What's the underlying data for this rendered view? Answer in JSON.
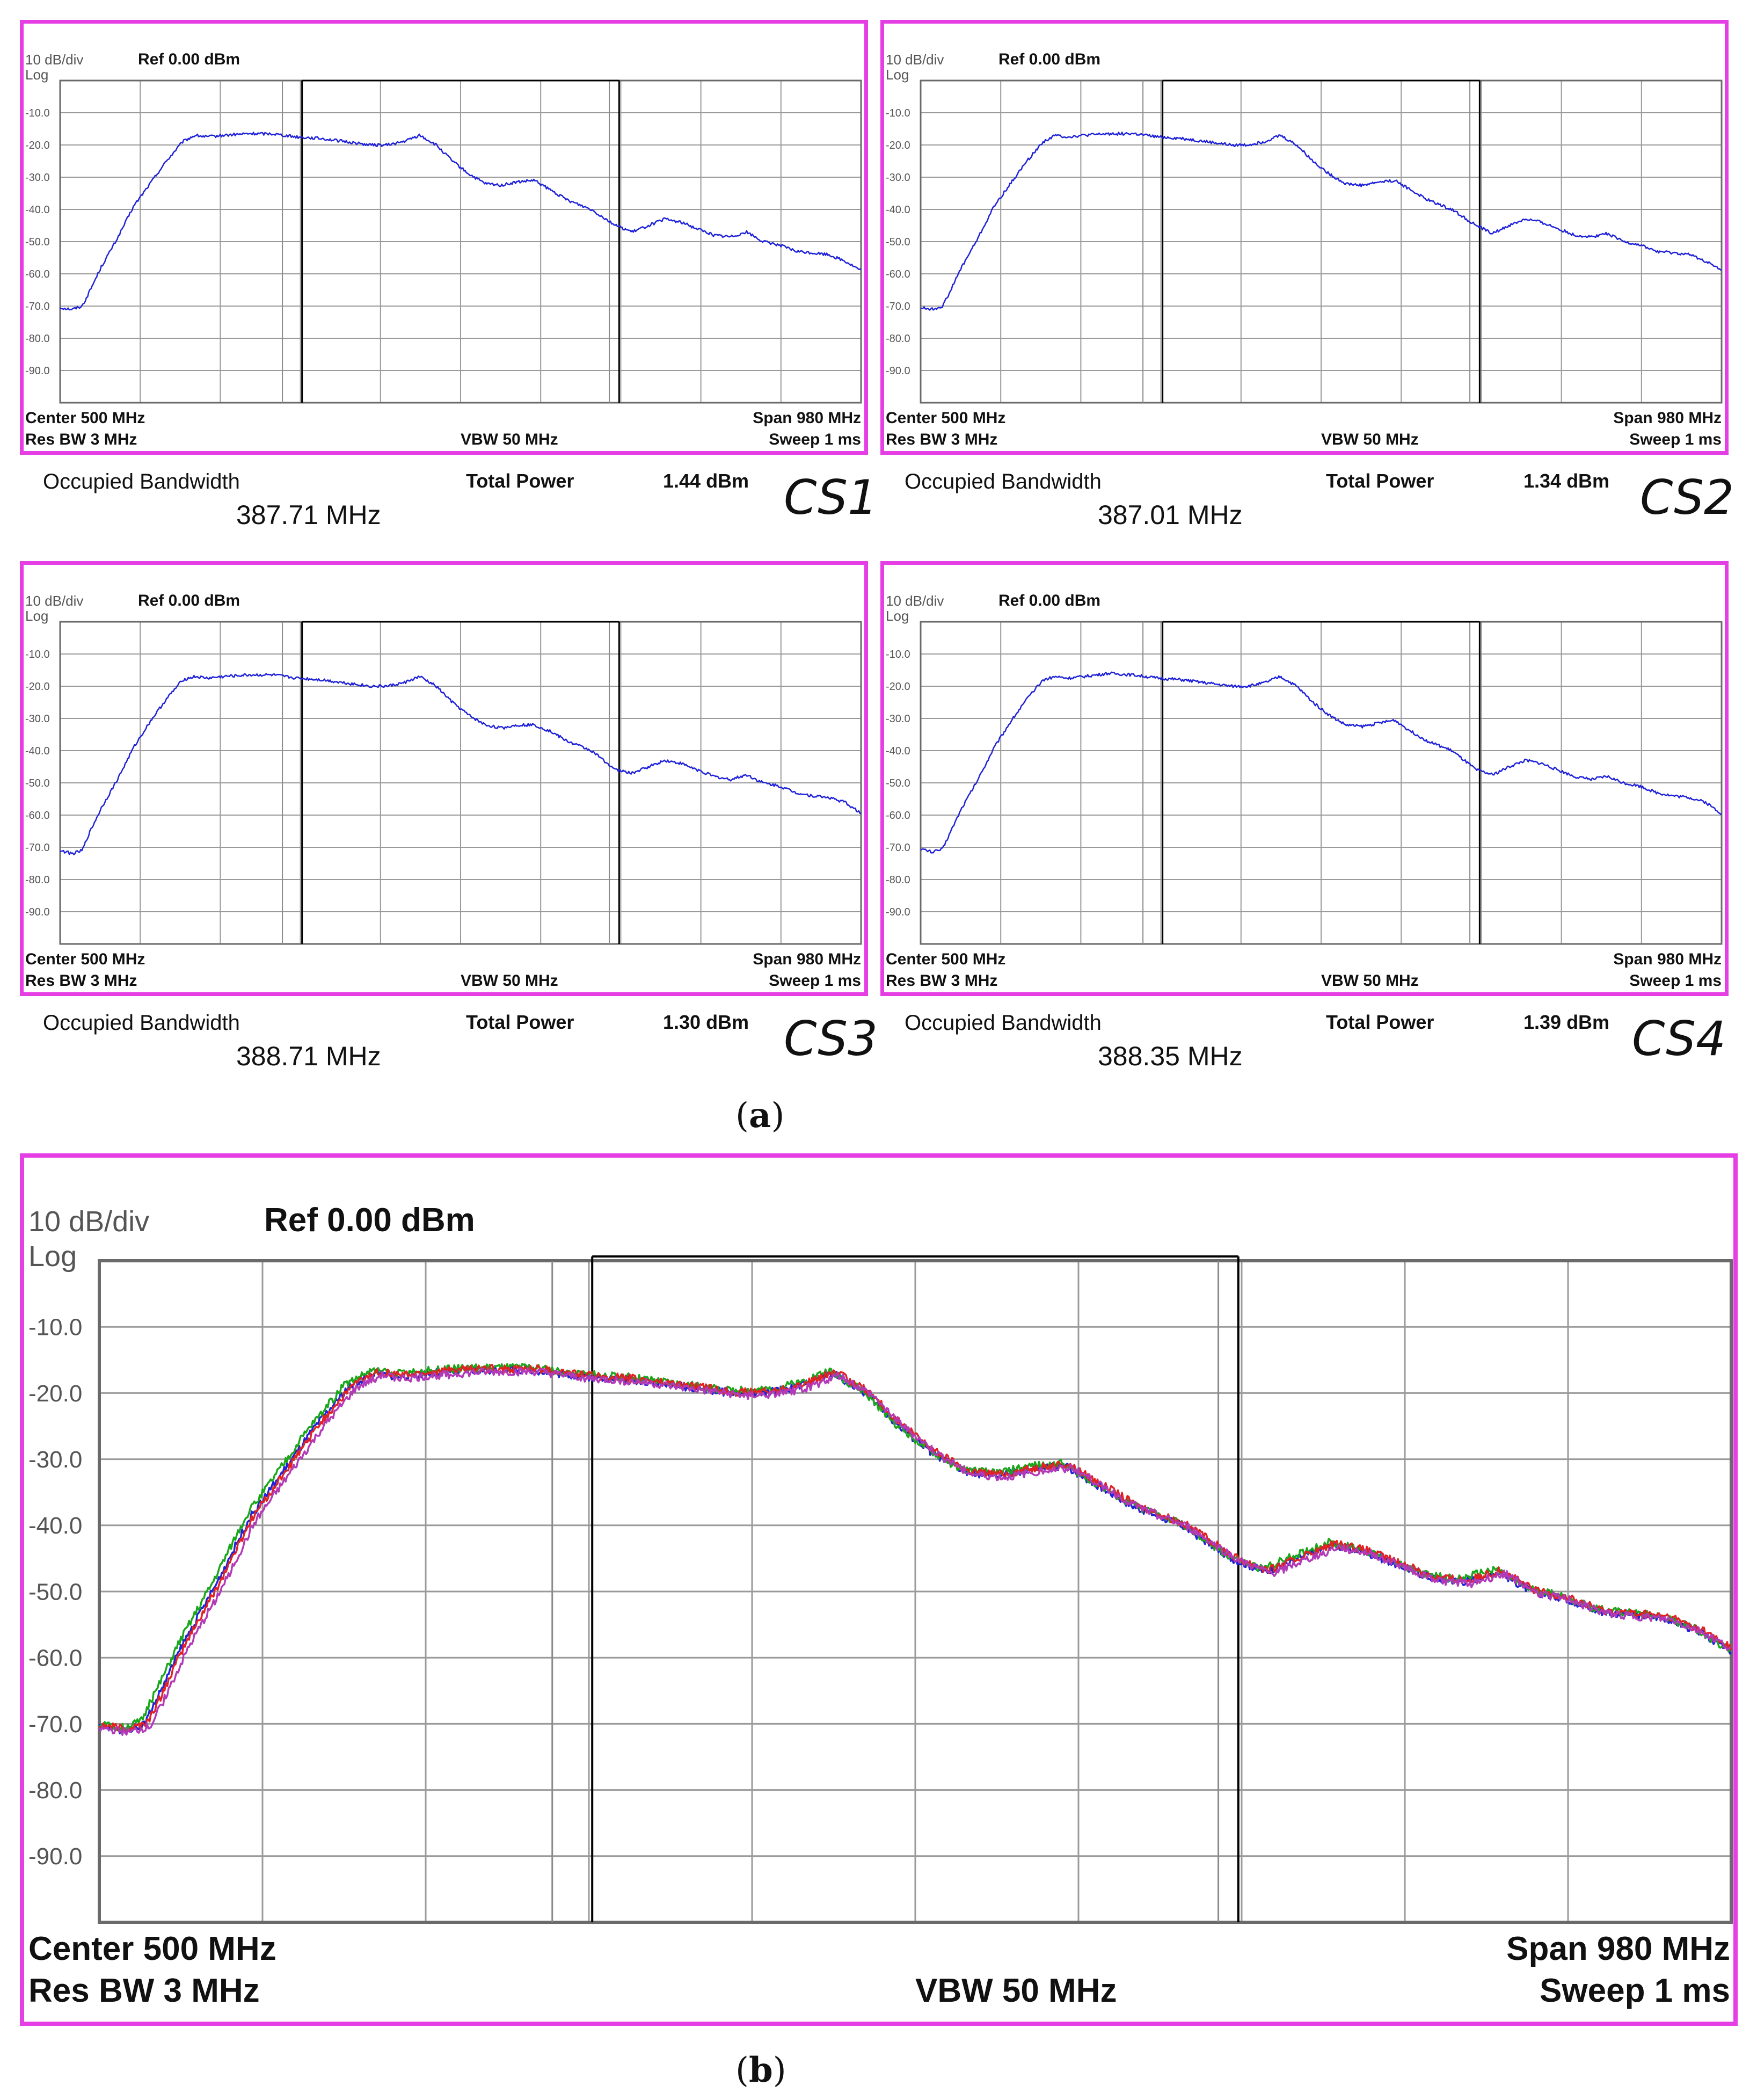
{
  "figure": {
    "sub_a": "a",
    "sub_b": "b",
    "colors": {
      "frame": "#e53ee5",
      "grid": "#9a9a9a",
      "trace_single": "#1f22d8",
      "text": "#111111"
    }
  },
  "chart_data": [
    {
      "id": "cs1",
      "type": "line",
      "tag": "CS1",
      "scale_label": "10 dB/div",
      "log_label": "Log",
      "ref_label": "Ref 0.00 dBm",
      "center_label": "Center  500 MHz",
      "span_label": "Span 980 MHz",
      "resbw_label": "Res BW  3 MHz",
      "vbw_label": "VBW  50 MHz",
      "sweep_label": "Sweep  1 ms",
      "ytick_labels": [
        "-10.0",
        "-20.0",
        "-30.0",
        "-40.0",
        "-50.0",
        "-60.0",
        "-70.0",
        "-80.0",
        "-90.0"
      ],
      "ylim": [
        -100,
        0
      ],
      "xlim": [
        10,
        990
      ],
      "xunit": "MHz",
      "yunit": "dBm",
      "occupied_bw_label": "Occupied Bandwidth",
      "occupied_bw_value": "387.71 MHz",
      "total_power_label": "Total Power",
      "total_power_value": "1.44 dBm",
      "marker_lines_mhz": [
        306,
        694
      ],
      "series": [
        {
          "name": "CS1",
          "color": "#1f22d8",
          "x": [
            10,
            25,
            37,
            45,
            60,
            80,
            100,
            120,
            140,
            160,
            175,
            190,
            210,
            240,
            270,
            300,
            330,
            360,
            390,
            410,
            430,
            450,
            470,
            490,
            510,
            530,
            550,
            570,
            590,
            610,
            630,
            660,
            690,
            710,
            730,
            750,
            770,
            790,
            810,
            830,
            850,
            870,
            890,
            910,
            930,
            950,
            970,
            990
          ],
          "y": [
            -70.5,
            -71,
            -70,
            -66,
            -58,
            -49,
            -39,
            -32,
            -25,
            -19,
            -17,
            -17.5,
            -17,
            -16.5,
            -16.5,
            -17.5,
            -18,
            -19,
            -20,
            -20,
            -19,
            -17,
            -20,
            -25,
            -29,
            -32,
            -32.5,
            -31.5,
            -31,
            -34,
            -37,
            -40,
            -45,
            -47,
            -45,
            -43,
            -44,
            -46,
            -48,
            -48.5,
            -47,
            -50,
            -51,
            -53,
            -53.5,
            -54,
            -56,
            -59
          ]
        }
      ]
    },
    {
      "id": "cs2",
      "type": "line",
      "tag": "CS2",
      "scale_label": "10 dB/div",
      "log_label": "Log",
      "ref_label": "Ref 0.00 dBm",
      "center_label": "Center  500 MHz",
      "span_label": "Span 980 MHz",
      "resbw_label": "Res BW  3 MHz",
      "vbw_label": "VBW  50 MHz",
      "sweep_label": "Sweep  1 ms",
      "ytick_labels": [
        "-10.0",
        "-20.0",
        "-30.0",
        "-40.0",
        "-50.0",
        "-60.0",
        "-70.0",
        "-80.0",
        "-90.0"
      ],
      "ylim": [
        -100,
        0
      ],
      "xlim": [
        10,
        990
      ],
      "xunit": "MHz",
      "yunit": "dBm",
      "occupied_bw_label": "Occupied Bandwidth",
      "occupied_bw_value": "387.01 MHz",
      "total_power_label": "Total Power",
      "total_power_value": "1.34 dBm",
      "marker_lines_mhz": [
        306,
        694
      ],
      "series": [
        {
          "name": "CS2",
          "color": "#1f22d8",
          "x": [
            10,
            25,
            37,
            45,
            60,
            80,
            100,
            120,
            140,
            160,
            175,
            190,
            210,
            240,
            270,
            300,
            330,
            360,
            390,
            410,
            430,
            450,
            470,
            490,
            510,
            530,
            550,
            570,
            590,
            610,
            630,
            660,
            690,
            710,
            730,
            750,
            770,
            790,
            810,
            830,
            850,
            870,
            890,
            910,
            930,
            950,
            970,
            990
          ],
          "y": [
            -70.5,
            -71,
            -70,
            -66,
            -58,
            -49,
            -39,
            -32,
            -25,
            -19,
            -17,
            -17.5,
            -17,
            -16.5,
            -16.5,
            -17.5,
            -18,
            -19,
            -20,
            -20,
            -19,
            -17,
            -20,
            -25,
            -29,
            -32,
            -32.5,
            -31.5,
            -31,
            -34,
            -37,
            -40,
            -45,
            -47.5,
            -45,
            -43,
            -44,
            -46,
            -48,
            -48.5,
            -47.5,
            -50,
            -51,
            -53,
            -53.5,
            -54,
            -56,
            -59
          ]
        }
      ]
    },
    {
      "id": "cs3",
      "type": "line",
      "tag": "CS3",
      "scale_label": "10 dB/div",
      "log_label": "Log",
      "ref_label": "Ref 0.00 dBm",
      "center_label": "Center  500 MHz",
      "span_label": "Span 980 MHz",
      "resbw_label": "Res BW  3 MHz",
      "vbw_label": "VBW  50 MHz",
      "sweep_label": "Sweep  1 ms",
      "ytick_labels": [
        "-10.0",
        "-20.0",
        "-30.0",
        "-40.0",
        "-50.0",
        "-60.0",
        "-70.0",
        "-80.0",
        "-90.0"
      ],
      "ylim": [
        -100,
        0
      ],
      "xlim": [
        10,
        990
      ],
      "xunit": "MHz",
      "yunit": "dBm",
      "occupied_bw_label": "Occupied Bandwidth",
      "occupied_bw_value": "388.71 MHz",
      "total_power_label": "Total Power",
      "total_power_value": "1.30 dBm",
      "marker_lines_mhz": [
        306,
        694
      ],
      "series": [
        {
          "name": "CS3",
          "color": "#1f22d8",
          "x": [
            10,
            25,
            37,
            45,
            60,
            80,
            100,
            120,
            140,
            160,
            175,
            190,
            210,
            240,
            270,
            300,
            330,
            360,
            390,
            410,
            430,
            450,
            470,
            490,
            510,
            530,
            550,
            570,
            590,
            610,
            630,
            660,
            690,
            710,
            730,
            750,
            770,
            790,
            810,
            830,
            850,
            870,
            890,
            910,
            930,
            950,
            970,
            990
          ],
          "y": [
            -71,
            -72,
            -71,
            -66,
            -58,
            -49,
            -39,
            -31,
            -24,
            -18,
            -17,
            -17.5,
            -17,
            -16.5,
            -16.5,
            -17.5,
            -18,
            -19,
            -20,
            -20,
            -19,
            -17,
            -20,
            -25,
            -29,
            -32,
            -33,
            -32,
            -32,
            -34,
            -37,
            -40,
            -46,
            -47,
            -45,
            -43,
            -44,
            -46,
            -48,
            -49,
            -47.5,
            -50,
            -51,
            -53,
            -54,
            -54.5,
            -56,
            -59.5
          ]
        }
      ]
    },
    {
      "id": "cs4",
      "type": "line",
      "tag": "CS4",
      "scale_label": "10 dB/div",
      "log_label": "Log",
      "ref_label": "Ref 0.00 dBm",
      "center_label": "Center  500 MHz",
      "span_label": "Span 980 MHz",
      "resbw_label": "Res BW  3 MHz",
      "vbw_label": "VBW  50 MHz",
      "sweep_label": "Sweep  1 ms",
      "ytick_labels": [
        "-10.0",
        "-20.0",
        "-30.0",
        "-40.0",
        "-50.0",
        "-60.0",
        "-70.0",
        "-80.0",
        "-90.0"
      ],
      "ylim": [
        -100,
        0
      ],
      "xlim": [
        10,
        990
      ],
      "xunit": "MHz",
      "yunit": "dBm",
      "occupied_bw_label": "Occupied Bandwidth",
      "occupied_bw_value": "388.35 MHz",
      "total_power_label": "Total Power",
      "total_power_value": "1.39 dBm",
      "marker_lines_mhz": [
        306,
        694
      ],
      "series": [
        {
          "name": "CS4",
          "color": "#1f22d8",
          "x": [
            10,
            25,
            37,
            45,
            60,
            80,
            100,
            120,
            140,
            160,
            175,
            190,
            210,
            240,
            270,
            300,
            330,
            360,
            390,
            410,
            430,
            450,
            470,
            490,
            510,
            530,
            550,
            570,
            590,
            610,
            630,
            660,
            690,
            710,
            730,
            750,
            770,
            790,
            810,
            830,
            850,
            870,
            890,
            910,
            930,
            950,
            970,
            990
          ],
          "y": [
            -70.5,
            -71.5,
            -70.5,
            -66,
            -58,
            -49,
            -39,
            -31,
            -24,
            -18,
            -17,
            -17.5,
            -17,
            -16,
            -16.5,
            -17.5,
            -18,
            -19,
            -20,
            -20,
            -19,
            -17,
            -20,
            -25,
            -29,
            -32,
            -32.5,
            -31.5,
            -30.5,
            -34,
            -37,
            -40,
            -46,
            -47.5,
            -45,
            -43,
            -44,
            -46,
            -48,
            -49,
            -48,
            -50,
            -51,
            -53,
            -54,
            -54.5,
            -56,
            -59.5
          ]
        }
      ]
    },
    {
      "id": "combined",
      "type": "line",
      "scale_label": "10 dB/div",
      "log_label": "Log",
      "ref_label": "Ref 0.00 dBm",
      "center_label": "Center  500 MHz",
      "span_label": "Span 980 MHz",
      "resbw_label": "Res BW  3 MHz",
      "vbw_label": "VBW  50 MHz",
      "sweep_label": "Sweep  1 ms",
      "ytick_labels": [
        "-10.0",
        "-20.0",
        "-30.0",
        "-40.0",
        "-50.0",
        "-60.0",
        "-70.0",
        "-80.0",
        "-90.0"
      ],
      "ylim": [
        -100,
        0
      ],
      "xlim": [
        10,
        990
      ],
      "xunit": "MHz",
      "yunit": "dBm",
      "marker_lines_mhz": [
        306,
        694
      ],
      "series": [
        {
          "name": "CS1",
          "color": "#1f22d8",
          "offset_mhz": 0,
          "yshift": 0
        },
        {
          "name": "CS2",
          "color": "#1aa71a",
          "offset_mhz": -2,
          "yshift": 0.4
        },
        {
          "name": "CS3",
          "color": "#e22222",
          "offset_mhz": 2,
          "yshift": 0.2
        },
        {
          "name": "CS4",
          "color": "#b23ab8",
          "offset_mhz": 4,
          "yshift": -0.3
        }
      ],
      "x": [
        10,
        25,
        37,
        45,
        60,
        80,
        100,
        120,
        140,
        160,
        175,
        190,
        210,
        240,
        270,
        300,
        330,
        360,
        390,
        410,
        430,
        450,
        470,
        490,
        510,
        530,
        550,
        570,
        590,
        610,
        630,
        660,
        690,
        710,
        730,
        750,
        770,
        790,
        810,
        830,
        850,
        870,
        890,
        910,
        930,
        950,
        970,
        990
      ],
      "y": [
        -70.5,
        -71,
        -70,
        -66,
        -58,
        -49,
        -39,
        -32,
        -25,
        -19,
        -17,
        -17.5,
        -17,
        -16.5,
        -16.5,
        -17.5,
        -18,
        -19,
        -20,
        -20,
        -19,
        -17,
        -20,
        -25,
        -29,
        -32,
        -32.5,
        -31.5,
        -31,
        -34,
        -37,
        -40,
        -45,
        -47,
        -45,
        -43,
        -44,
        -46,
        -48,
        -48.5,
        -47,
        -50,
        -51,
        -53,
        -53.5,
        -54,
        -56,
        -59
      ]
    }
  ]
}
